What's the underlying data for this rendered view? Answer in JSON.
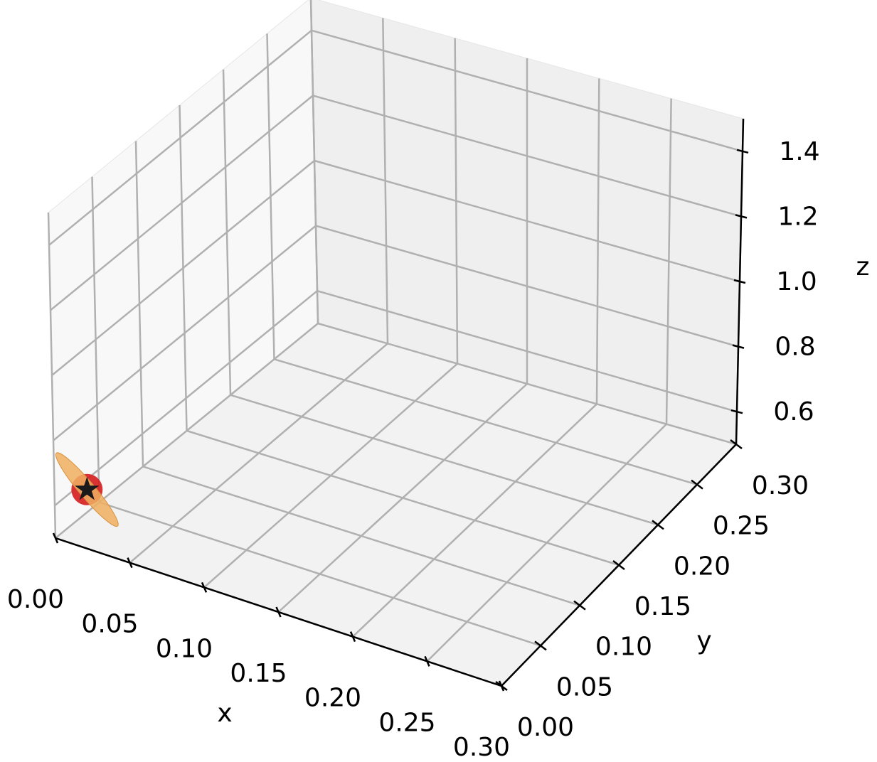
{
  "chart_data": {
    "type": "scatter3d",
    "x_label": "x",
    "y_label": "y",
    "z_label": "z",
    "x": [
      0.01
    ],
    "y": [
      0.02
    ],
    "z": [
      0.62
    ],
    "color": "#d62728",
    "marker_color": "#1a1a1a",
    "ellipsoid_color": "#f0b060",
    "xlim": [
      0,
      0.3
    ],
    "ylim": [
      0,
      0.3
    ],
    "zlim": [
      0.5,
      1.5
    ],
    "xticks": [
      {
        "value": 0,
        "label": "0.00"
      },
      {
        "value": 0.05,
        "label": "0.05"
      },
      {
        "value": 0.1,
        "label": "0.10"
      },
      {
        "value": 0.15,
        "label": "0.15"
      },
      {
        "value": 0.2,
        "label": "0.20"
      },
      {
        "value": 0.25,
        "label": "0.25"
      },
      {
        "value": 0.3,
        "label": "0.30"
      }
    ],
    "yticks": [
      {
        "value": 0,
        "label": "0.00"
      },
      {
        "value": 0.05,
        "label": "0.05"
      },
      {
        "value": 0.1,
        "label": "0.10"
      },
      {
        "value": 0.15,
        "label": "0.15"
      },
      {
        "value": 0.2,
        "label": "0.20"
      },
      {
        "value": 0.25,
        "label": "0.25"
      },
      {
        "value": 0.3,
        "label": "0.30"
      }
    ],
    "zticks": [
      0.6,
      0.8,
      {
        "value": 1,
        "label": "1.0"
      },
      1.2,
      1.4
    ],
    "grid": true
  }
}
